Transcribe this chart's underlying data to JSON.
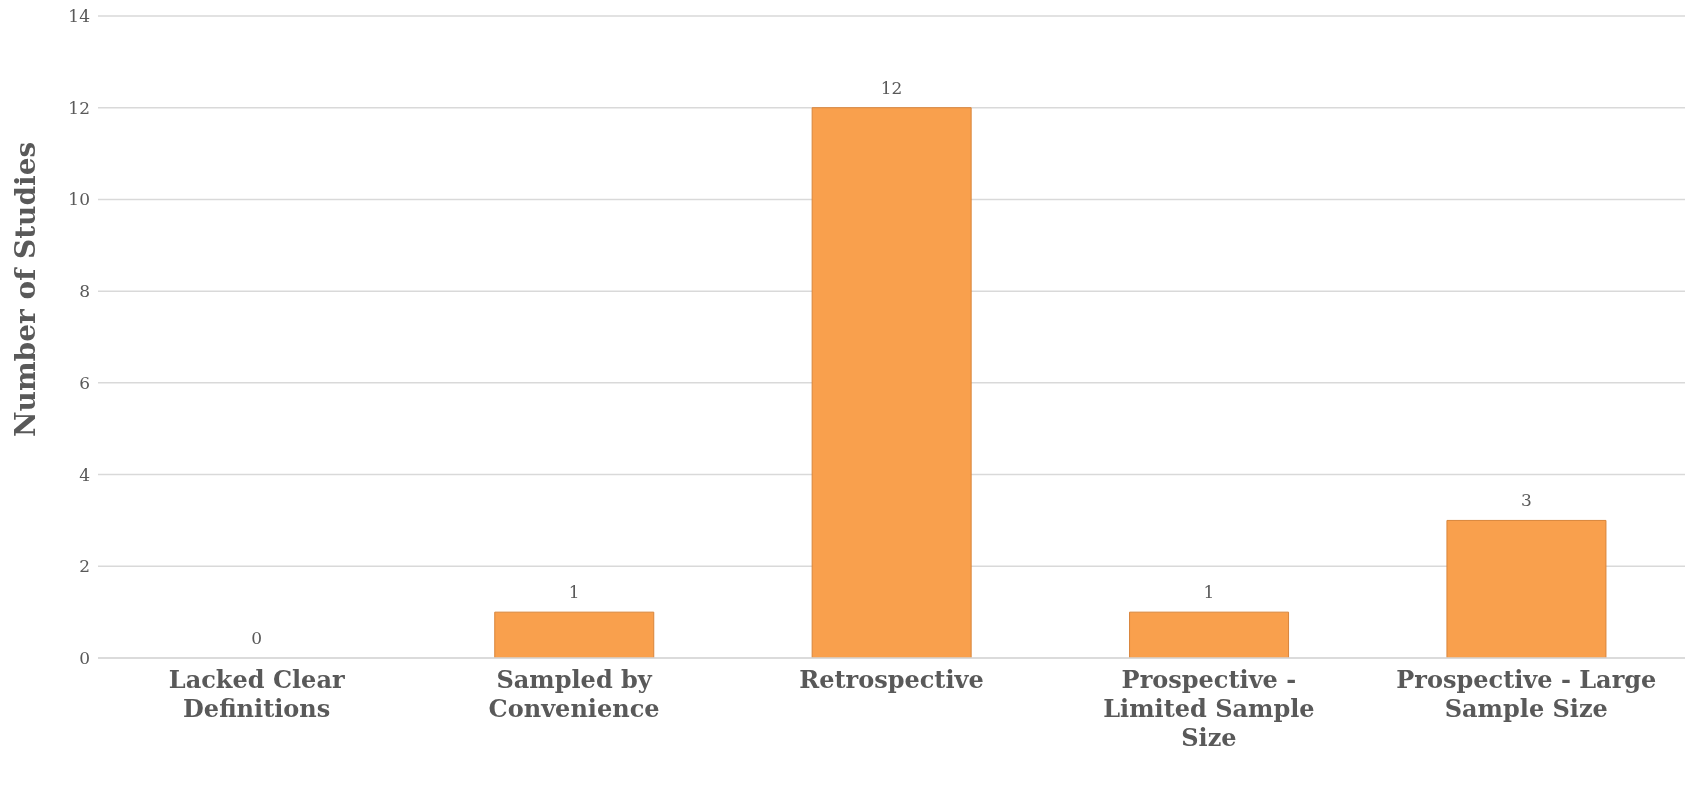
{
  "chart_data": {
    "type": "bar",
    "ylabel": "Number of Studies",
    "categories": [
      "Lacked Clear Definitions",
      "Sampled by Convenience",
      "Retrospective",
      "Prospective - Limited Sample Size",
      "Prospective - Large Sample Size"
    ],
    "values": [
      0,
      1,
      12,
      1,
      3
    ],
    "color": "#f9a04d",
    "ylim": [
      0,
      14
    ],
    "yticks": [
      0,
      2,
      4,
      6,
      8,
      10,
      12,
      14
    ],
    "grid": "y",
    "data_labels": true,
    "legend": false
  }
}
